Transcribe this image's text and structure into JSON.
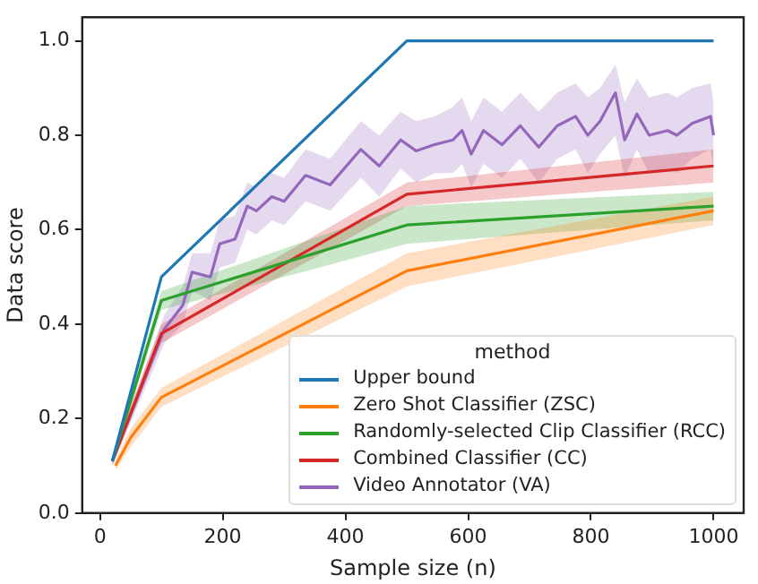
{
  "chart_data": {
    "type": "line",
    "xlabel": "Sample size (n)",
    "ylabel": "Data score",
    "legend_title": "method",
    "legend": "bottom right",
    "grid": false,
    "marker": "none",
    "line_style": "solid",
    "xlim": [
      -29,
      1049
    ],
    "xticks": [
      0,
      200,
      400,
      600,
      800,
      1000
    ],
    "ylim": [
      0,
      1.05
    ],
    "yticks": [
      {
        "value": 0,
        "label": "0.0"
      },
      {
        "value": 0.2,
        "label": "0.2"
      },
      {
        "value": 0.4,
        "label": "0.4"
      },
      {
        "value": 0.6,
        "label": "0.6"
      },
      {
        "value": 0.8,
        "label": "0.8"
      },
      {
        "value": 1.0,
        "label": "1.0"
      }
    ],
    "series": [
      {
        "name": "Upper bound",
        "color": "#1f77b4",
        "x": [
          20,
          100,
          500,
          1000
        ],
        "values": [
          0.11,
          0.5,
          1.0,
          1.0
        ]
      },
      {
        "name": "Zero Shot Classifier (ZSC)",
        "color": "#ff7f0e",
        "x": [
          25,
          50,
          100,
          500,
          1000
        ],
        "values": [
          0.1,
          0.16,
          0.245,
          0.513,
          0.64
        ],
        "lower": [
          0.09,
          0.14,
          0.225,
          0.48,
          0.61
        ],
        "upper": [
          0.11,
          0.18,
          0.265,
          0.55,
          0.67
        ]
      },
      {
        "name": "Randomly-selected Clip Classifier (RCC)",
        "color": "#2ca02c",
        "x": [
          20,
          100,
          500,
          1000
        ],
        "values": [
          0.11,
          0.45,
          0.61,
          0.65
        ],
        "lower": [
          0.1,
          0.43,
          0.57,
          0.62
        ],
        "upper": [
          0.12,
          0.47,
          0.65,
          0.68
        ]
      },
      {
        "name": "Combined Classifier (CC)",
        "color": "#d62728",
        "x": [
          20,
          100,
          500,
          1000
        ],
        "values": [
          0.11,
          0.38,
          0.675,
          0.735
        ],
        "lower": [
          0.1,
          0.36,
          0.65,
          0.7
        ],
        "upper": [
          0.12,
          0.4,
          0.7,
          0.77
        ]
      },
      {
        "name": "Video Annotator (VA)",
        "color": "#9467bd",
        "x": [
          20,
          105,
          135,
          150,
          180,
          195,
          220,
          240,
          255,
          280,
          300,
          335,
          375,
          425,
          455,
          490,
          515,
          545,
          575,
          590,
          605,
          625,
          655,
          685,
          715,
          745,
          775,
          795,
          815,
          840,
          855,
          875,
          895,
          925,
          940,
          965,
          995,
          1000
        ],
        "values": [
          0.11,
          0.39,
          0.44,
          0.51,
          0.5,
          0.57,
          0.58,
          0.65,
          0.64,
          0.67,
          0.66,
          0.715,
          0.695,
          0.77,
          0.735,
          0.79,
          0.767,
          0.78,
          0.79,
          0.81,
          0.76,
          0.81,
          0.78,
          0.82,
          0.775,
          0.82,
          0.84,
          0.8,
          0.83,
          0.89,
          0.79,
          0.845,
          0.8,
          0.81,
          0.8,
          0.825,
          0.84,
          0.8
        ],
        "lower": [
          0.1,
          0.36,
          0.4,
          0.47,
          0.45,
          0.52,
          0.53,
          0.6,
          0.59,
          0.62,
          0.61,
          0.66,
          0.64,
          0.71,
          0.67,
          0.73,
          0.7,
          0.72,
          0.72,
          0.74,
          0.69,
          0.74,
          0.71,
          0.75,
          0.7,
          0.75,
          0.77,
          0.72,
          0.76,
          0.8,
          0.71,
          0.77,
          0.72,
          0.73,
          0.72,
          0.75,
          0.77,
          0.73
        ],
        "upper": [
          0.12,
          0.42,
          0.48,
          0.55,
          0.55,
          0.62,
          0.63,
          0.7,
          0.69,
          0.72,
          0.71,
          0.77,
          0.75,
          0.83,
          0.8,
          0.85,
          0.83,
          0.84,
          0.86,
          0.88,
          0.83,
          0.88,
          0.85,
          0.89,
          0.85,
          0.89,
          0.91,
          0.88,
          0.9,
          0.95,
          0.87,
          0.92,
          0.88,
          0.89,
          0.88,
          0.9,
          0.91,
          0.87
        ]
      }
    ]
  }
}
